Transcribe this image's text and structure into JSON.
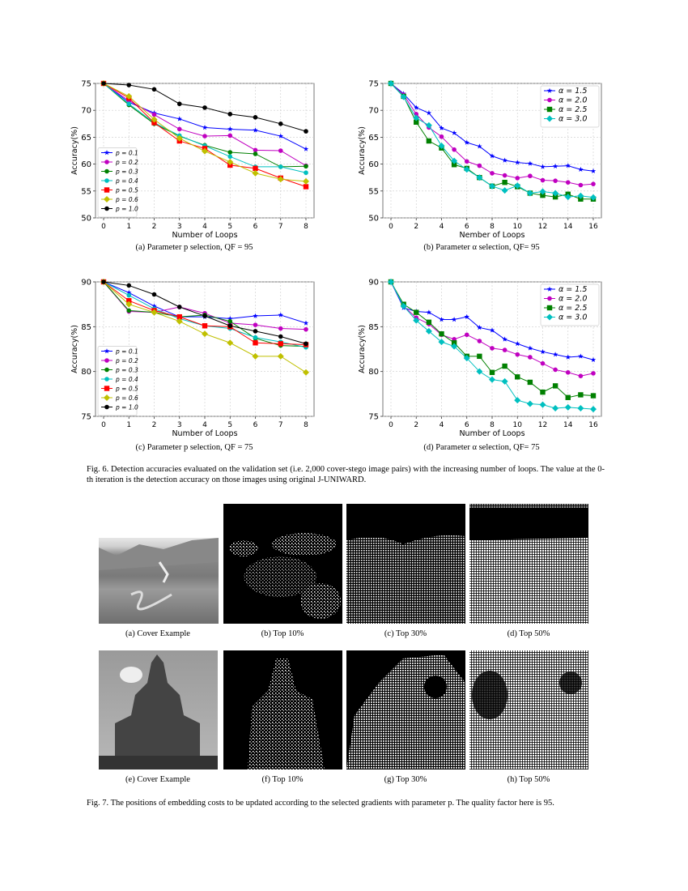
{
  "chart_data": [
    {
      "id": "a",
      "type": "line",
      "title": "",
      "xlabel": "Number of Loops",
      "ylabel": "Accuracy(%)",
      "ylim": [
        50,
        75
      ],
      "yticks": [
        50,
        55,
        60,
        65,
        70,
        75
      ],
      "xticks": [
        0,
        1,
        2,
        3,
        4,
        5,
        6,
        7,
        8
      ],
      "grid": true,
      "legend_position": "lower left",
      "x": [
        0,
        1,
        2,
        3,
        4,
        5,
        6,
        7,
        8
      ],
      "series": [
        {
          "name": "p = 0.1",
          "color": "#0000ff",
          "marker": "star",
          "values": [
            75.0,
            71.5,
            69.5,
            68.4,
            66.8,
            66.5,
            66.3,
            65.2,
            62.8
          ]
        },
        {
          "name": "p = 0.2",
          "color": "#c000c0",
          "marker": "circle",
          "values": [
            75.0,
            71.8,
            69.2,
            66.5,
            65.2,
            65.3,
            62.6,
            62.5,
            59.7
          ]
        },
        {
          "name": "p = 0.3",
          "color": "#008000",
          "marker": "circle",
          "values": [
            75.0,
            71.0,
            67.5,
            65.2,
            63.5,
            62.2,
            61.9,
            59.5,
            59.6
          ]
        },
        {
          "name": "p = 0.4",
          "color": "#00c0c0",
          "marker": "circle",
          "values": [
            75.0,
            71.2,
            67.7,
            65.3,
            63.4,
            61.4,
            59.5,
            59.5,
            58.4
          ]
        },
        {
          "name": "p = 0.5",
          "color": "#ff0000",
          "marker": "square",
          "values": [
            75.0,
            72.3,
            67.7,
            64.3,
            62.9,
            59.8,
            59.2,
            57.4,
            55.8
          ]
        },
        {
          "name": "p = 0.6",
          "color": "#c0c000",
          "marker": "diamond",
          "values": [
            75.0,
            72.6,
            68.3,
            64.8,
            62.4,
            60.4,
            58.3,
            57.2,
            56.8
          ]
        },
        {
          "name": "p = 1.0",
          "color": "#000000",
          "marker": "circle",
          "values": [
            75.0,
            74.7,
            73.9,
            71.2,
            70.5,
            69.3,
            68.7,
            67.5,
            66.1
          ]
        }
      ],
      "caption": "(a) Parameter p selection, QF = 95"
    },
    {
      "id": "b",
      "type": "line",
      "title": "",
      "xlabel": "Nember of Loops",
      "ylabel": "Accuracy(%)",
      "ylim": [
        50,
        75
      ],
      "yticks": [
        50,
        55,
        60,
        65,
        70,
        75
      ],
      "xticks": [
        0,
        2,
        4,
        6,
        8,
        10,
        12,
        14,
        16
      ],
      "grid": true,
      "legend_position": "upper right",
      "x": [
        0,
        1,
        2,
        3,
        4,
        5,
        6,
        7,
        8,
        9,
        10,
        11,
        12,
        13,
        14,
        15,
        16
      ],
      "series": [
        {
          "name": "α = 1.5",
          "color": "#0000ff",
          "marker": "star",
          "values": [
            75.0,
            73.1,
            70.5,
            69.5,
            66.7,
            65.8,
            64.0,
            63.3,
            61.5,
            60.7,
            60.3,
            60.1,
            59.5,
            59.6,
            59.7,
            59.0,
            58.7
          ]
        },
        {
          "name": "α = 2.0",
          "color": "#c000c0",
          "marker": "circle",
          "values": [
            75.0,
            72.9,
            69.3,
            66.8,
            65.1,
            62.7,
            60.5,
            59.7,
            58.3,
            57.9,
            57.4,
            57.8,
            57.0,
            56.9,
            56.6,
            56.1,
            56.3
          ]
        },
        {
          "name": "α = 2.5",
          "color": "#008000",
          "marker": "square",
          "values": [
            75.0,
            72.6,
            67.8,
            64.3,
            63.0,
            59.9,
            59.2,
            57.5,
            55.9,
            56.6,
            55.8,
            54.6,
            54.2,
            53.9,
            54.4,
            53.5,
            53.5
          ]
        },
        {
          "name": "α = 3.0",
          "color": "#00c0c0",
          "marker": "diamond",
          "values": [
            75.0,
            72.5,
            68.6,
            67.2,
            63.4,
            60.6,
            59.0,
            57.5,
            55.9,
            55.1,
            56.0,
            54.6,
            54.9,
            54.6,
            53.9,
            54.1,
            53.8
          ]
        }
      ],
      "caption": "(b) Parameter α selection, QF= 95"
    },
    {
      "id": "c",
      "type": "line",
      "title": "",
      "xlabel": "Number of Loops",
      "ylabel": "Accuracy(%)",
      "ylim": [
        75,
        90
      ],
      "yticks": [
        75,
        80,
        85,
        90
      ],
      "xticks": [
        0,
        1,
        2,
        3,
        4,
        5,
        6,
        7,
        8
      ],
      "grid": true,
      "legend_position": "lower left",
      "x": [
        0,
        1,
        2,
        3,
        4,
        5,
        6,
        7,
        8
      ],
      "series": [
        {
          "name": "p = 0.1",
          "color": "#0000ff",
          "marker": "star",
          "values": [
            90.0,
            88.8,
            87.3,
            86.1,
            86.1,
            85.9,
            86.2,
            86.3,
            85.4
          ]
        },
        {
          "name": "p = 0.2",
          "color": "#c000c0",
          "marker": "circle",
          "values": [
            90.0,
            86.7,
            86.6,
            87.2,
            86.5,
            85.4,
            85.2,
            84.8,
            84.7
          ]
        },
        {
          "name": "p = 0.3",
          "color": "#008000",
          "marker": "circle",
          "values": [
            90.0,
            86.8,
            86.6,
            86.1,
            86.3,
            85.6,
            83.7,
            82.9,
            82.8
          ]
        },
        {
          "name": "p = 0.4",
          "color": "#00c0c0",
          "marker": "circle",
          "values": [
            90.0,
            88.5,
            87.0,
            85.9,
            85.1,
            84.8,
            83.8,
            83.3,
            82.7
          ]
        },
        {
          "name": "p = 0.5",
          "color": "#ff0000",
          "marker": "square",
          "values": [
            90.0,
            87.9,
            86.8,
            86.1,
            85.1,
            85.0,
            83.2,
            83.1,
            83.0
          ]
        },
        {
          "name": "p = 0.6",
          "color": "#c0c000",
          "marker": "diamond",
          "values": [
            90.0,
            87.5,
            86.6,
            85.6,
            84.2,
            83.2,
            81.7,
            81.7,
            79.9
          ]
        },
        {
          "name": "p = 1.0",
          "color": "#000000",
          "marker": "circle",
          "values": [
            90.0,
            89.6,
            88.6,
            87.2,
            86.2,
            85.1,
            84.5,
            83.9,
            83.1
          ]
        }
      ],
      "caption": "(c) Parameter p selection, QF = 75"
    },
    {
      "id": "d",
      "type": "line",
      "title": "",
      "xlabel": "Number of Loops",
      "ylabel": "Accuracy(%)",
      "ylim": [
        75,
        90
      ],
      "yticks": [
        75,
        80,
        85,
        90
      ],
      "xticks": [
        0,
        2,
        4,
        6,
        8,
        10,
        12,
        14,
        16
      ],
      "grid": true,
      "legend_position": "upper right",
      "x": [
        0,
        1,
        2,
        3,
        4,
        5,
        6,
        7,
        8,
        9,
        10,
        11,
        12,
        13,
        14,
        15,
        16
      ],
      "series": [
        {
          "name": "α = 1.5",
          "color": "#0000ff",
          "marker": "star",
          "values": [
            90.0,
            87.1,
            86.7,
            86.6,
            85.8,
            85.8,
            86.1,
            84.9,
            84.6,
            83.6,
            83.1,
            82.6,
            82.2,
            81.9,
            81.6,
            81.7,
            81.3
          ]
        },
        {
          "name": "α = 2.0",
          "color": "#c000c0",
          "marker": "circle",
          "values": [
            90.0,
            87.3,
            86.0,
            85.3,
            84.1,
            83.6,
            84.1,
            83.4,
            82.6,
            82.4,
            81.9,
            81.6,
            80.9,
            80.2,
            79.9,
            79.5,
            79.8
          ]
        },
        {
          "name": "α = 2.5",
          "color": "#008000",
          "marker": "square",
          "values": [
            90.0,
            87.5,
            86.6,
            85.5,
            84.2,
            83.2,
            81.7,
            81.7,
            79.9,
            80.6,
            79.4,
            78.8,
            77.7,
            78.4,
            77.1,
            77.4,
            77.3
          ]
        },
        {
          "name": "α = 3.0",
          "color": "#00c0c0",
          "marker": "diamond",
          "values": [
            90.0,
            87.3,
            85.7,
            84.5,
            83.3,
            82.8,
            81.5,
            80.0,
            79.1,
            78.9,
            76.8,
            76.4,
            76.3,
            75.9,
            76.0,
            75.9,
            75.8
          ]
        }
      ],
      "caption": "(d) Parameter α selection, QF= 75"
    }
  ],
  "fig6_caption": "Fig. 6.  Detection accuracies evaluated on the validation set (i.e. 2,000 cover-stego image pairs) with the increasing number of loops. The value at the 0-th iteration is the detection accuracy on those images using original J-UNIWARD.",
  "fig7": {
    "row1": [
      "(a) Cover Example",
      "(b) Top 10%",
      "(c) Top 30%",
      "(d) Top 50%"
    ],
    "row2": [
      "(e) Cover Example",
      "(f) Top 10%",
      "(g) Top 30%",
      "(h) Top 50%"
    ],
    "caption": "Fig. 7.  The positions of embedding costs to be updated according to the selected gradients with parameter p. The quality factor here is 95."
  }
}
